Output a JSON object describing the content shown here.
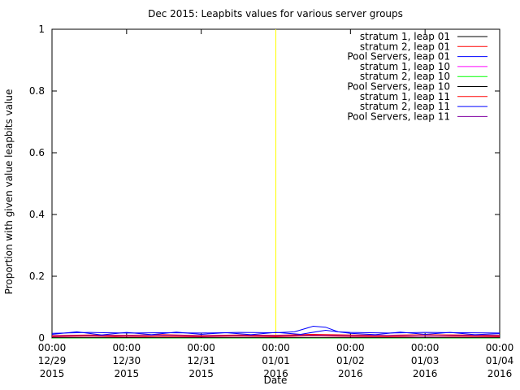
{
  "chart_data": {
    "type": "line",
    "title": "Dec 2015: Leapbits values for various server groups",
    "xlabel": "Date",
    "ylabel": "Proportion with given value leapbits value",
    "ylim": [
      0,
      1
    ],
    "xlim": [
      "2015-12-29T00:00",
      "2016-01-04T00:00"
    ],
    "y_ticks": [
      "0",
      "0.2",
      "0.4",
      "0.6",
      "0.8",
      "1"
    ],
    "x_ticks": [
      {
        "time": "00:00",
        "date": "12/29",
        "year": "2015"
      },
      {
        "time": "00:00",
        "date": "12/30",
        "year": "2015"
      },
      {
        "time": "00:00",
        "date": "12/31",
        "year": "2015"
      },
      {
        "time": "00:00",
        "date": "01/01",
        "year": "2016"
      },
      {
        "time": "00:00",
        "date": "01/02",
        "year": "2016"
      },
      {
        "time": "00:00",
        "date": "01/03",
        "year": "2016"
      },
      {
        "time": "00:00",
        "date": "01/04",
        "year": "2016"
      }
    ],
    "marker_line": {
      "x": "2016-01-01T00:00",
      "color": "#ffff00"
    },
    "legend_position": "top-right",
    "grid": false,
    "series": [
      {
        "name": "stratum 1, leap 01",
        "color": "#000000",
        "x": [
          "2015-12-29",
          "2016-01-04"
        ],
        "y": [
          0.0,
          0.0
        ]
      },
      {
        "name": "stratum 2, leap 01",
        "color": "#ff0000",
        "x": [
          "2015-12-29",
          "2015-12-29T12:00",
          "2015-12-30",
          "2015-12-30T12:00",
          "2015-12-31",
          "2015-12-31T12:00",
          "2016-01-01",
          "2016-01-01T12:00",
          "2016-01-02",
          "2016-01-02T12:00",
          "2016-01-03",
          "2016-01-03T12:00",
          "2016-01-04"
        ],
        "y": [
          0.004,
          0.006,
          0.003,
          0.005,
          0.004,
          0.006,
          0.004,
          0.007,
          0.005,
          0.004,
          0.006,
          0.005,
          0.004
        ]
      },
      {
        "name": "Pool Servers, leap 01",
        "color": "#0000ff",
        "x": [
          "2015-12-29",
          "2015-12-29T12:00",
          "2015-12-30",
          "2015-12-30T12:00",
          "2015-12-31",
          "2015-12-31T12:00",
          "2016-01-01",
          "2016-01-01T06:00",
          "2016-01-01T12:00",
          "2016-01-01T16:00",
          "2016-01-01T20:00",
          "2016-01-02",
          "2016-01-02T12:00",
          "2016-01-03",
          "2016-01-03T12:00",
          "2016-01-04"
        ],
        "y": [
          0.015,
          0.018,
          0.016,
          0.017,
          0.016,
          0.018,
          0.017,
          0.02,
          0.038,
          0.035,
          0.02,
          0.018,
          0.016,
          0.018,
          0.017,
          0.016
        ]
      },
      {
        "name": "stratum 1, leap 10",
        "color": "#ff00ff",
        "x": [
          "2015-12-29",
          "2016-01-04"
        ],
        "y": [
          0.0,
          0.0
        ]
      },
      {
        "name": "stratum 2, leap 10",
        "color": "#00ff00",
        "x": [
          "2015-12-29",
          "2016-01-04"
        ],
        "y": [
          0.0,
          0.0
        ]
      },
      {
        "name": "Pool Servers, leap 10",
        "color": "#000000",
        "x": [
          "2015-12-29",
          "2016-01-04"
        ],
        "y": [
          0.001,
          0.001
        ]
      },
      {
        "name": "stratum 1, leap 11",
        "color": "#ff0000",
        "x": [
          "2015-12-29",
          "2015-12-29T12:00",
          "2015-12-30",
          "2015-12-30T12:00",
          "2015-12-31",
          "2015-12-31T12:00",
          "2016-01-01",
          "2016-01-01T12:00",
          "2016-01-02",
          "2016-01-02T12:00",
          "2016-01-03",
          "2016-01-03T12:00",
          "2016-01-04"
        ],
        "y": [
          0.008,
          0.01,
          0.009,
          0.011,
          0.008,
          0.01,
          0.009,
          0.012,
          0.01,
          0.009,
          0.011,
          0.01,
          0.009
        ]
      },
      {
        "name": "stratum 2, leap 11",
        "color": "#0000ff",
        "x": [
          "2015-12-29",
          "2015-12-29T08:00",
          "2015-12-29T16:00",
          "2015-12-30",
          "2015-12-30T08:00",
          "2015-12-30T16:00",
          "2015-12-31",
          "2015-12-31T08:00",
          "2015-12-31T16:00",
          "2016-01-01",
          "2016-01-01T08:00",
          "2016-01-01T16:00",
          "2016-01-02",
          "2016-01-02T08:00",
          "2016-01-02T16:00",
          "2016-01-03",
          "2016-01-03T08:00",
          "2016-01-03T16:00",
          "2016-01-04"
        ],
        "y": [
          0.012,
          0.02,
          0.01,
          0.018,
          0.011,
          0.019,
          0.012,
          0.017,
          0.011,
          0.018,
          0.012,
          0.025,
          0.015,
          0.011,
          0.019,
          0.012,
          0.018,
          0.011,
          0.014
        ]
      },
      {
        "name": "Pool Servers, leap 11",
        "color": "#8000a0",
        "x": [
          "2015-12-29",
          "2015-12-29T12:00",
          "2015-12-30",
          "2015-12-30T12:00",
          "2015-12-31",
          "2015-12-31T12:00",
          "2016-01-01",
          "2016-01-01T12:00",
          "2016-01-02",
          "2016-01-02T12:00",
          "2016-01-03",
          "2016-01-03T12:00",
          "2016-01-04"
        ],
        "y": [
          0.006,
          0.008,
          0.007,
          0.009,
          0.006,
          0.008,
          0.007,
          0.009,
          0.007,
          0.008,
          0.006,
          0.008,
          0.007
        ]
      }
    ]
  }
}
